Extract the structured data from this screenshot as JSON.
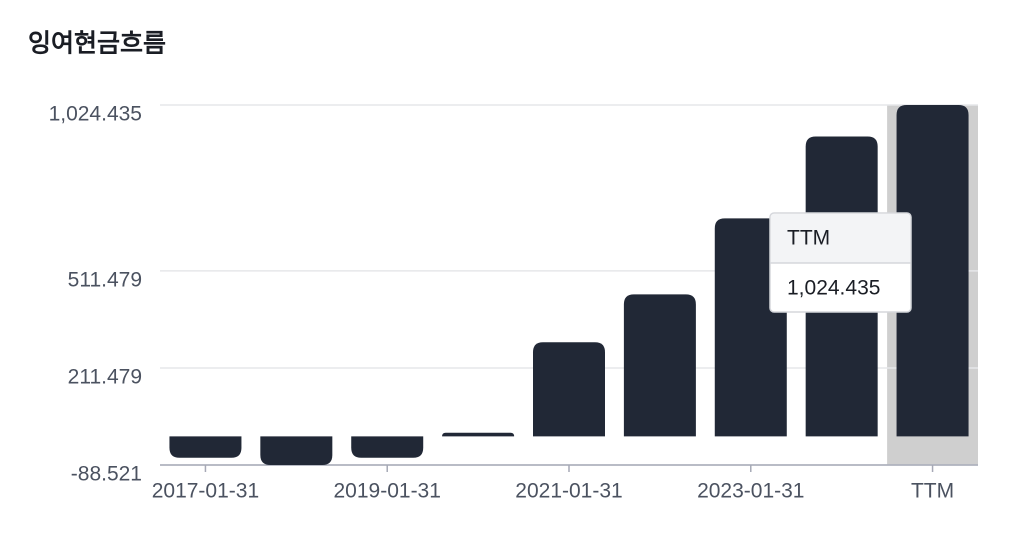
{
  "chart_data": {
    "type": "bar",
    "title": "잉여현금흐름",
    "categories": [
      "2017-01-31",
      null,
      "2019-01-31",
      null,
      "2021-01-31",
      null,
      "2023-01-31",
      null,
      "TTM"
    ],
    "values": [
      -66,
      -88.5,
      -66,
      11,
      291,
      439,
      674,
      927,
      1024.435
    ],
    "color": "#212836",
    "ylim": [
      -88.521,
      1024.435
    ],
    "yticks": [
      -88.521,
      211.479,
      511.479,
      {
        "value": 1024.435,
        "label": "1,024.435"
      }
    ],
    "grid": true,
    "tooltip": {
      "title": "TTM",
      "value": "1,024.435"
    }
  }
}
